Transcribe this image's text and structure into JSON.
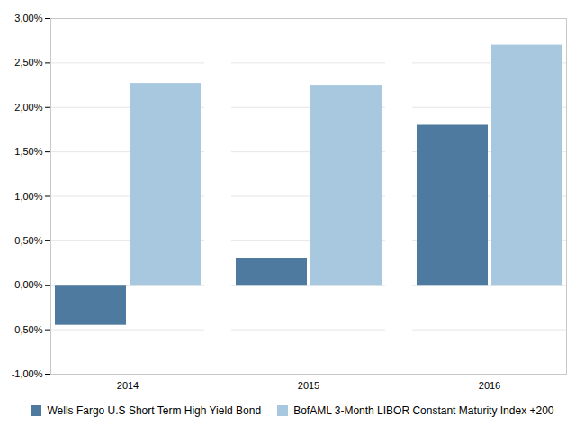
{
  "chart_data": {
    "type": "bar",
    "categories": [
      "2014",
      "2015",
      "2016"
    ],
    "series": [
      {
        "name": "Wells Fargo U.S Short Term High Yield Bond",
        "color": "#4d7a9e",
        "values": [
          -0.0045,
          0.003,
          0.018
        ]
      },
      {
        "name": "BofAML 3-Month LIBOR Constant Maturity Index +200",
        "color": "#a8c8e0",
        "values": [
          0.0227,
          0.0225,
          0.027
        ]
      }
    ],
    "ylim": [
      -0.01,
      0.03
    ],
    "yticks": [
      {
        "value": -0.01,
        "label": "-1,00%"
      },
      {
        "value": -0.005,
        "label": "-0,50%"
      },
      {
        "value": 0.0,
        "label": "0,00%"
      },
      {
        "value": 0.005,
        "label": "0,50%"
      },
      {
        "value": 0.01,
        "label": "1,00%"
      },
      {
        "value": 0.015,
        "label": "1,50%"
      },
      {
        "value": 0.02,
        "label": "2,00%"
      },
      {
        "value": 0.025,
        "label": "2,50%"
      },
      {
        "value": 0.03,
        "label": "3,00%"
      }
    ],
    "grid": true,
    "legend": "bottom"
  }
}
